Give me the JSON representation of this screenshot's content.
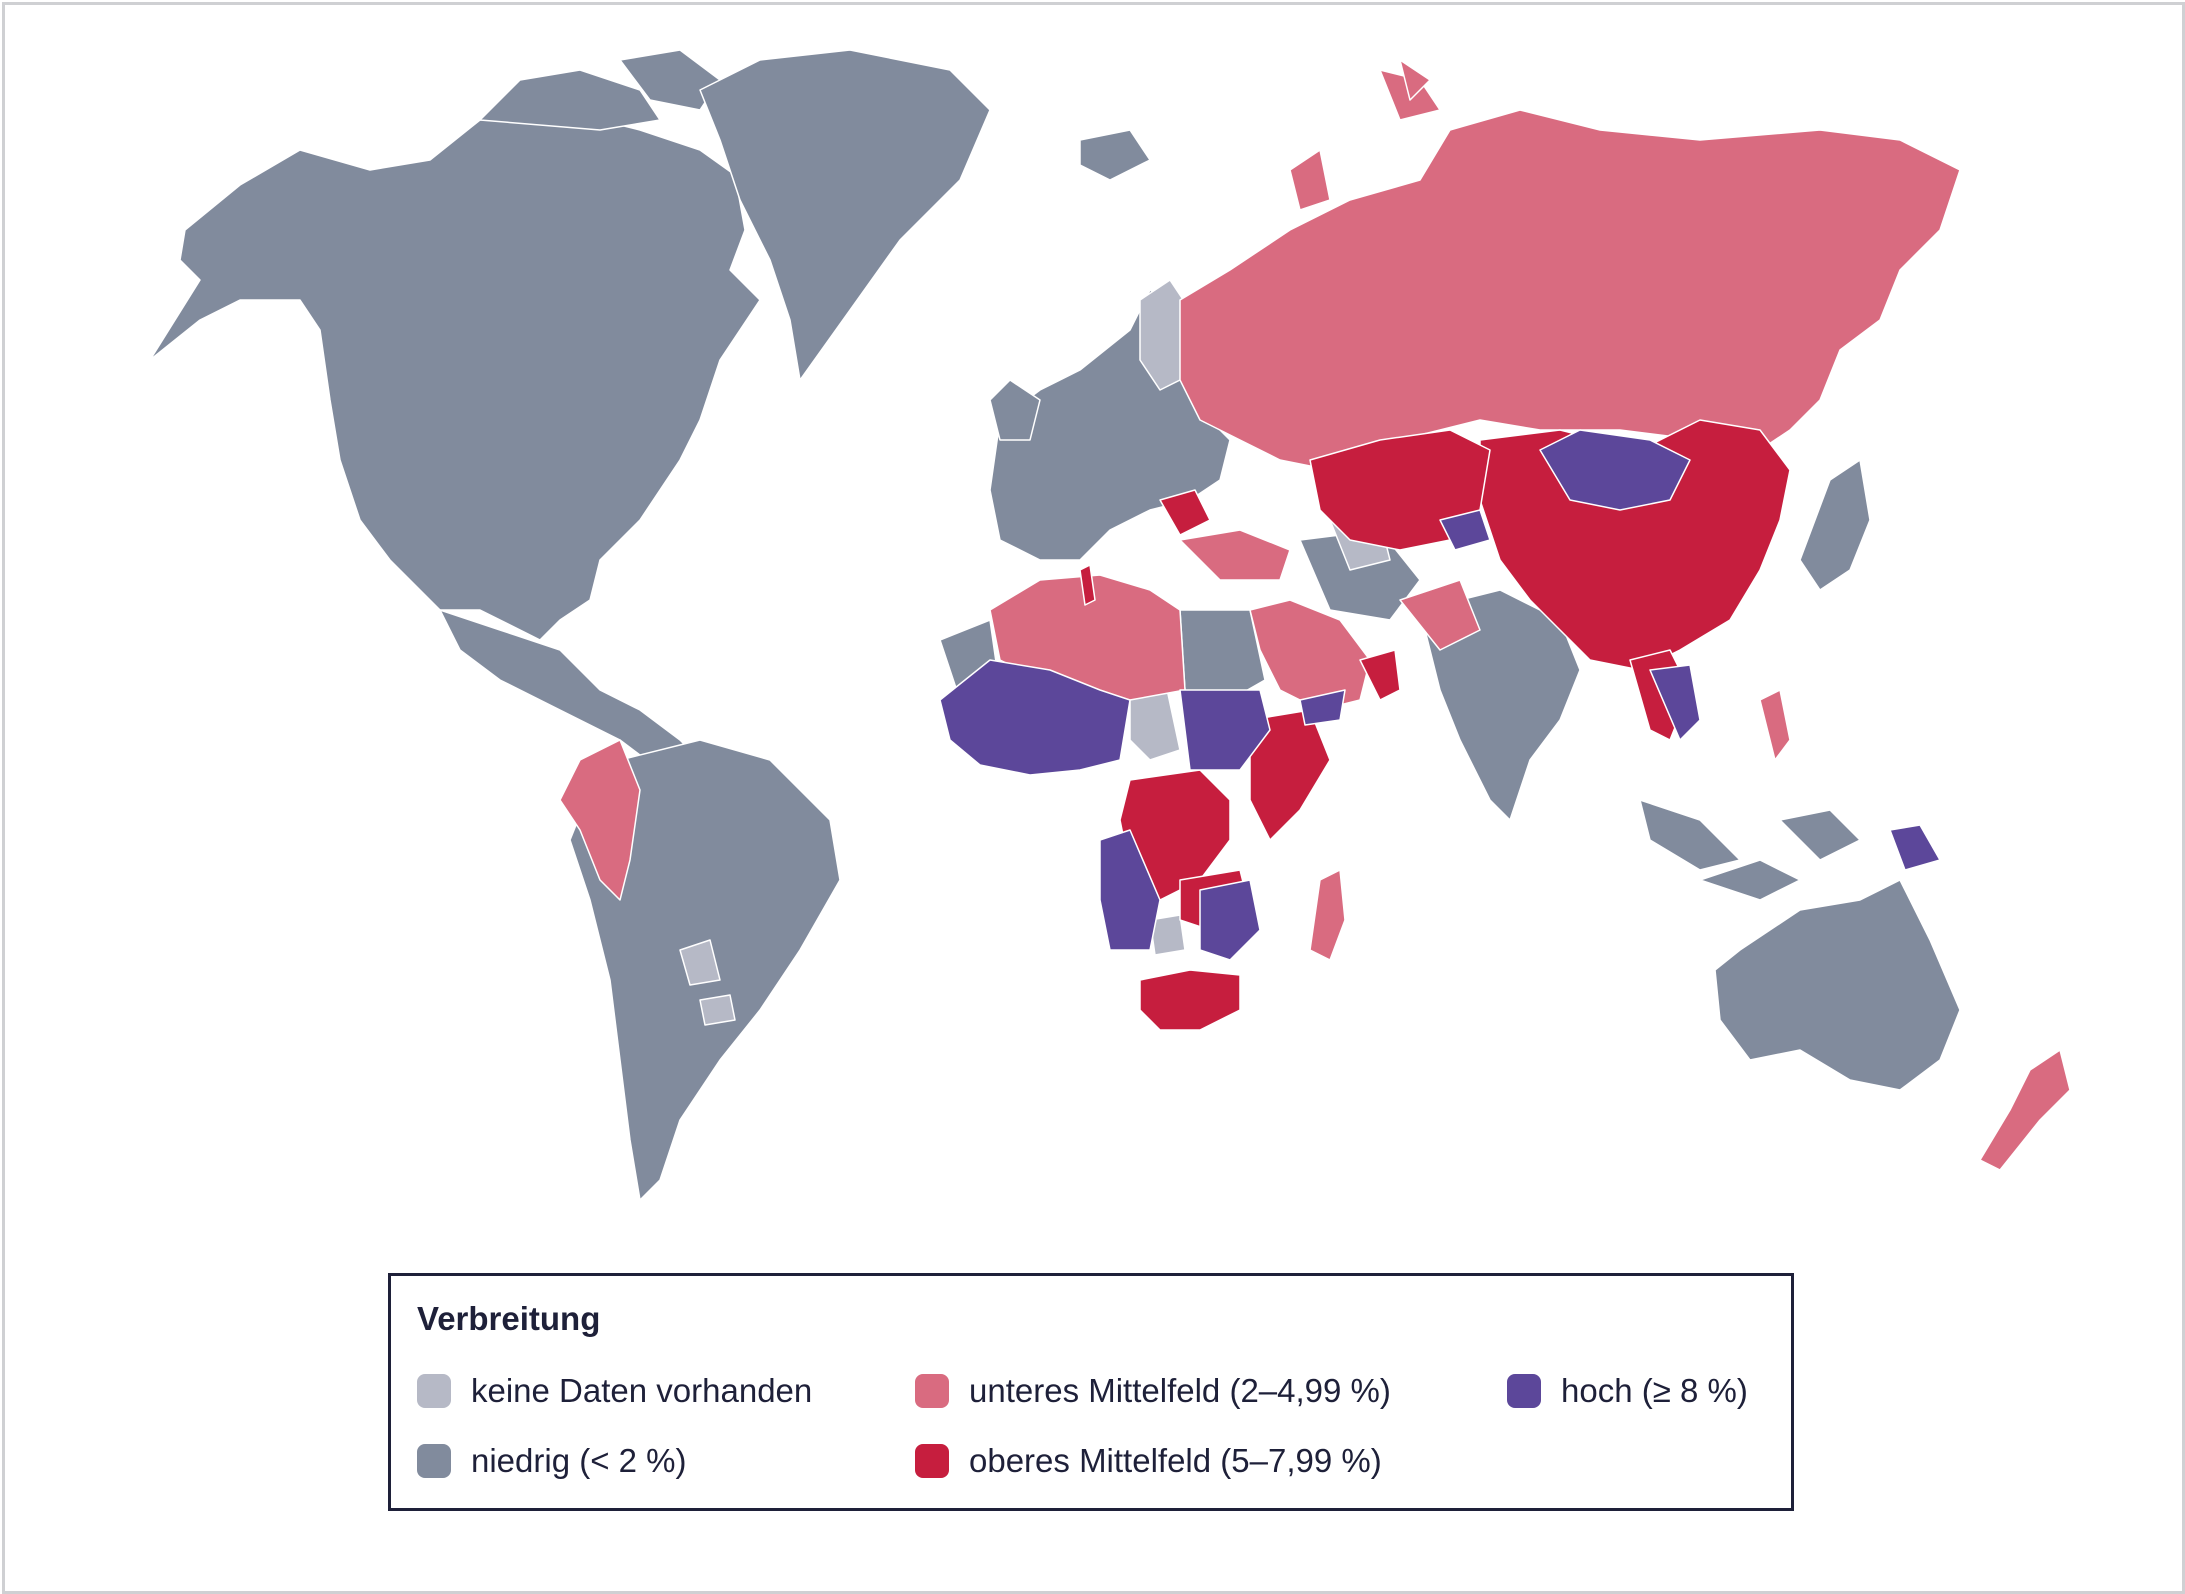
{
  "map": {
    "colors": {
      "nodata": "#b6b9c6",
      "low": "#818b9d",
      "lower_mid": "#d96b80",
      "upper_mid": "#c61e3e",
      "high": "#5c479a",
      "border": "#ffffff"
    }
  },
  "legend": {
    "title": "Verbreitung",
    "items": [
      {
        "key": "nodata",
        "label": "keine Daten vorhanden",
        "color": "#b6b9c6"
      },
      {
        "key": "low",
        "label": "niedrig (< 2 %)",
        "color": "#818b9d"
      },
      {
        "key": "lower_mid",
        "label": "unteres Mittelfeld (2–4,99 %)",
        "color": "#d96b80"
      },
      {
        "key": "upper_mid",
        "label": "oberes Mittelfeld (5–7,99 %)",
        "color": "#c61e3e"
      },
      {
        "key": "high",
        "label": "hoch (≥ 8 %)",
        "color": "#5c479a"
      }
    ]
  }
}
